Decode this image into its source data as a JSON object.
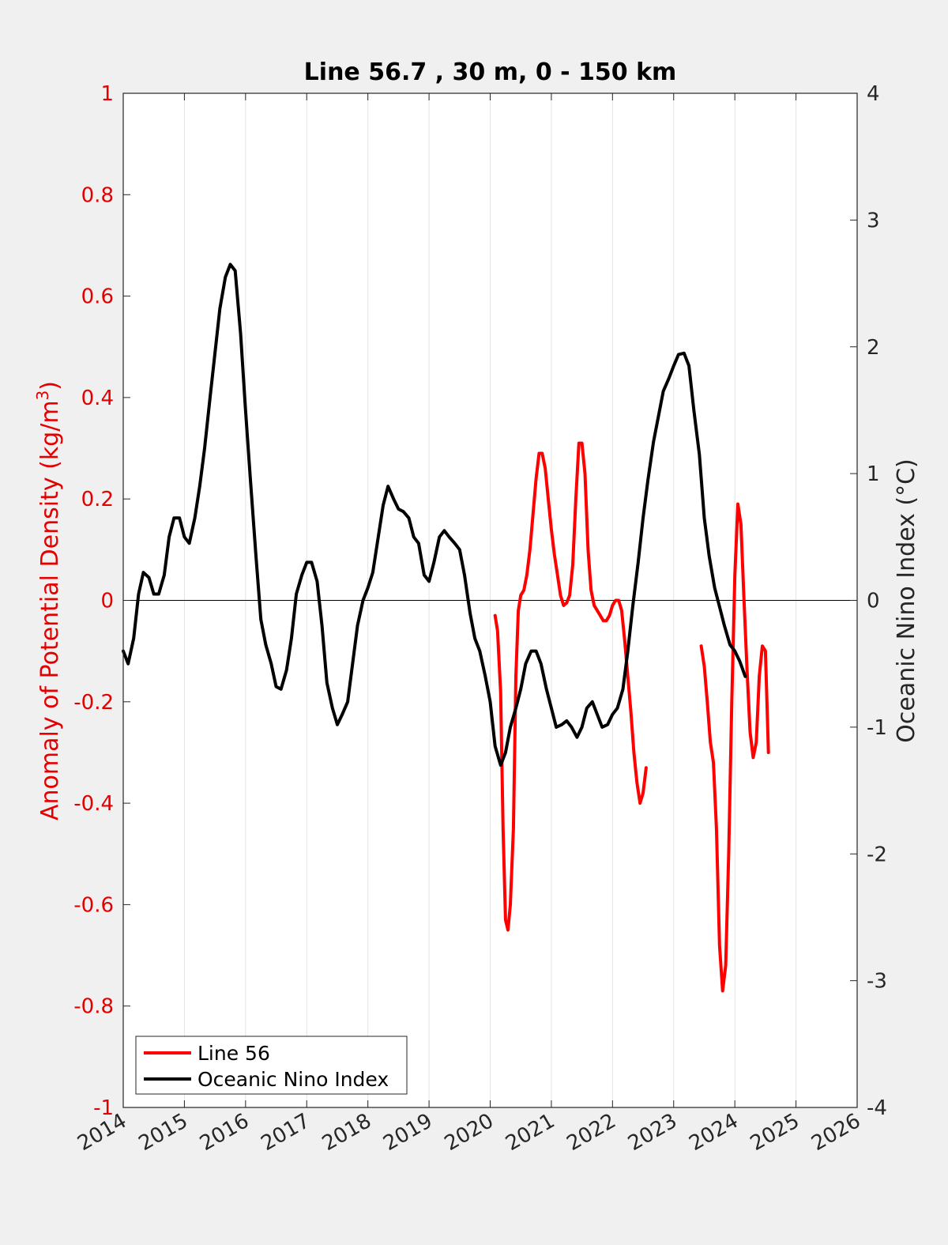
{
  "chart_data": {
    "type": "line",
    "title": "Line 56.7 , 30 m, 0 - 150 km",
    "xlim": [
      2014,
      2026
    ],
    "x_ticks": [
      "2014",
      "2015",
      "2016",
      "2017",
      "2018",
      "2019",
      "2020",
      "2021",
      "2022",
      "2023",
      "2024",
      "2025",
      "2026"
    ],
    "ylabel_left_prefix": "Anomaly of Potential Density (kg/m",
    "ylabel_left_superscript": "3",
    "ylabel_left_suffix": ")",
    "ylim_left": [
      -1,
      1
    ],
    "left_ticks": [
      "1",
      "0.8",
      "0.6",
      "0.4",
      "0.2",
      "0",
      "-0.2",
      "-0.4",
      "-0.6",
      "-0.8",
      "-1"
    ],
    "ylabel_right": "Oceanic Nino Index (°C)",
    "ylim_right": [
      -4,
      4
    ],
    "right_ticks": [
      "4",
      "3",
      "2",
      "1",
      "0",
      "-1",
      "-2",
      "-3",
      "-4"
    ],
    "grid": "x-only",
    "zero_line": true,
    "legend_position": "bottom-left",
    "colors": {
      "line56": "#ff0000",
      "oni": "#000000",
      "left_axis": "#e50000"
    },
    "series": [
      {
        "name": "Line 56",
        "axis": "left",
        "segments": [
          [
            [
              2020.08,
              -0.03
            ],
            [
              2020.12,
              -0.06
            ],
            [
              2020.17,
              -0.18
            ],
            [
              2020.21,
              -0.45
            ],
            [
              2020.25,
              -0.63
            ],
            [
              2020.29,
              -0.65
            ],
            [
              2020.33,
              -0.6
            ],
            [
              2020.38,
              -0.45
            ],
            [
              2020.42,
              -0.15
            ],
            [
              2020.46,
              -0.02
            ],
            [
              2020.5,
              0.01
            ],
            [
              2020.55,
              0.02
            ],
            [
              2020.6,
              0.05
            ],
            [
              2020.65,
              0.1
            ],
            [
              2020.7,
              0.17
            ],
            [
              2020.75,
              0.24
            ],
            [
              2020.8,
              0.29
            ],
            [
              2020.85,
              0.29
            ],
            [
              2020.9,
              0.26
            ],
            [
              2020.95,
              0.2
            ],
            [
              2021.0,
              0.14
            ],
            [
              2021.05,
              0.09
            ],
            [
              2021.1,
              0.05
            ],
            [
              2021.15,
              0.01
            ],
            [
              2021.2,
              -0.01
            ],
            [
              2021.25,
              -0.005
            ],
            [
              2021.3,
              0.01
            ],
            [
              2021.35,
              0.07
            ],
            [
              2021.4,
              0.2
            ],
            [
              2021.45,
              0.31
            ],
            [
              2021.5,
              0.31
            ],
            [
              2021.55,
              0.25
            ],
            [
              2021.6,
              0.1
            ],
            [
              2021.65,
              0.02
            ],
            [
              2021.7,
              -0.01
            ],
            [
              2021.75,
              -0.02
            ],
            [
              2021.8,
              -0.03
            ],
            [
              2021.85,
              -0.04
            ],
            [
              2021.9,
              -0.04
            ],
            [
              2021.95,
              -0.03
            ],
            [
              2022.0,
              -0.01
            ],
            [
              2022.05,
              0.0
            ],
            [
              2022.1,
              0.0
            ],
            [
              2022.15,
              -0.02
            ],
            [
              2022.2,
              -0.08
            ],
            [
              2022.25,
              -0.15
            ],
            [
              2022.3,
              -0.22
            ],
            [
              2022.35,
              -0.3
            ],
            [
              2022.4,
              -0.36
            ],
            [
              2022.45,
              -0.4
            ],
            [
              2022.5,
              -0.38
            ],
            [
              2022.55,
              -0.33
            ]
          ],
          [
            [
              2023.45,
              -0.09
            ],
            [
              2023.5,
              -0.13
            ],
            [
              2023.55,
              -0.2
            ],
            [
              2023.6,
              -0.28
            ],
            [
              2023.65,
              -0.32
            ],
            [
              2023.7,
              -0.45
            ],
            [
              2023.75,
              -0.68
            ],
            [
              2023.8,
              -0.77
            ],
            [
              2023.85,
              -0.72
            ],
            [
              2023.9,
              -0.5
            ],
            [
              2023.95,
              -0.2
            ],
            [
              2024.0,
              0.05
            ],
            [
              2024.05,
              0.19
            ],
            [
              2024.1,
              0.15
            ],
            [
              2024.15,
              0.0
            ],
            [
              2024.2,
              -0.14
            ],
            [
              2024.25,
              -0.26
            ],
            [
              2024.3,
              -0.31
            ],
            [
              2024.35,
              -0.28
            ],
            [
              2024.4,
              -0.15
            ],
            [
              2024.45,
              -0.09
            ],
            [
              2024.5,
              -0.1
            ],
            [
              2024.55,
              -0.3
            ]
          ]
        ]
      },
      {
        "name": "Oceanic Nino Index",
        "axis": "right",
        "values": [
          [
            2014.0,
            -0.4
          ],
          [
            2014.08,
            -0.5
          ],
          [
            2014.17,
            -0.3
          ],
          [
            2014.25,
            0.05
          ],
          [
            2014.33,
            0.22
          ],
          [
            2014.42,
            0.18
          ],
          [
            2014.5,
            0.05
          ],
          [
            2014.58,
            0.05
          ],
          [
            2014.67,
            0.2
          ],
          [
            2014.75,
            0.5
          ],
          [
            2014.83,
            0.65
          ],
          [
            2014.92,
            0.65
          ],
          [
            2015.0,
            0.5
          ],
          [
            2015.08,
            0.45
          ],
          [
            2015.17,
            0.65
          ],
          [
            2015.25,
            0.9
          ],
          [
            2015.33,
            1.2
          ],
          [
            2015.42,
            1.6
          ],
          [
            2015.5,
            1.95
          ],
          [
            2015.58,
            2.3
          ],
          [
            2015.67,
            2.55
          ],
          [
            2015.75,
            2.65
          ],
          [
            2015.83,
            2.6
          ],
          [
            2015.92,
            2.1
          ],
          [
            2016.0,
            1.5
          ],
          [
            2016.08,
            0.95
          ],
          [
            2016.17,
            0.35
          ],
          [
            2016.25,
            -0.15
          ],
          [
            2016.33,
            -0.35
          ],
          [
            2016.42,
            -0.5
          ],
          [
            2016.5,
            -0.68
          ],
          [
            2016.58,
            -0.7
          ],
          [
            2016.67,
            -0.55
          ],
          [
            2016.75,
            -0.3
          ],
          [
            2016.83,
            0.05
          ],
          [
            2016.92,
            0.2
          ],
          [
            2017.0,
            0.3
          ],
          [
            2017.08,
            0.3
          ],
          [
            2017.17,
            0.15
          ],
          [
            2017.25,
            -0.2
          ],
          [
            2017.33,
            -0.65
          ],
          [
            2017.42,
            -0.85
          ],
          [
            2017.5,
            -0.98
          ],
          [
            2017.58,
            -0.9
          ],
          [
            2017.67,
            -0.8
          ],
          [
            2017.75,
            -0.5
          ],
          [
            2017.83,
            -0.2
          ],
          [
            2017.92,
            0.0
          ],
          [
            2018.0,
            0.1
          ],
          [
            2018.08,
            0.22
          ],
          [
            2018.17,
            0.5
          ],
          [
            2018.25,
            0.75
          ],
          [
            2018.33,
            0.9
          ],
          [
            2018.42,
            0.8
          ],
          [
            2018.5,
            0.72
          ],
          [
            2018.58,
            0.7
          ],
          [
            2018.67,
            0.65
          ],
          [
            2018.75,
            0.5
          ],
          [
            2018.83,
            0.45
          ],
          [
            2018.92,
            0.2
          ],
          [
            2019.0,
            0.15
          ],
          [
            2019.08,
            0.3
          ],
          [
            2019.17,
            0.5
          ],
          [
            2019.25,
            0.55
          ],
          [
            2019.33,
            0.5
          ],
          [
            2019.42,
            0.45
          ],
          [
            2019.5,
            0.4
          ],
          [
            2019.58,
            0.2
          ],
          [
            2019.67,
            -0.1
          ],
          [
            2019.75,
            -0.3
          ],
          [
            2019.83,
            -0.4
          ],
          [
            2019.92,
            -0.6
          ],
          [
            2020.0,
            -0.8
          ],
          [
            2020.08,
            -1.15
          ],
          [
            2020.17,
            -1.3
          ],
          [
            2020.25,
            -1.2
          ],
          [
            2020.33,
            -1.0
          ],
          [
            2020.42,
            -0.85
          ],
          [
            2020.5,
            -0.7
          ],
          [
            2020.58,
            -0.5
          ],
          [
            2020.67,
            -0.4
          ],
          [
            2020.75,
            -0.4
          ],
          [
            2020.83,
            -0.5
          ],
          [
            2020.92,
            -0.7
          ],
          [
            2021.0,
            -0.85
          ],
          [
            2021.08,
            -1.0
          ],
          [
            2021.17,
            -0.98
          ],
          [
            2021.25,
            -0.95
          ],
          [
            2021.33,
            -1.0
          ],
          [
            2021.42,
            -1.08
          ],
          [
            2021.5,
            -1.0
          ],
          [
            2021.58,
            -0.85
          ],
          [
            2021.67,
            -0.8
          ],
          [
            2021.75,
            -0.9
          ],
          [
            2021.83,
            -1.0
          ],
          [
            2021.92,
            -0.98
          ],
          [
            2022.0,
            -0.9
          ],
          [
            2022.08,
            -0.85
          ],
          [
            2022.17,
            -0.7
          ],
          [
            2022.25,
            -0.4
          ],
          [
            2022.33,
            -0.05
          ],
          [
            2022.42,
            0.3
          ],
          [
            2022.5,
            0.65
          ],
          [
            2022.58,
            0.95
          ],
          [
            2022.67,
            1.25
          ],
          [
            2022.75,
            1.45
          ],
          [
            2022.83,
            1.65
          ],
          [
            2022.92,
            1.75
          ],
          [
            2023.0,
            1.85
          ],
          [
            2023.08,
            1.94
          ],
          [
            2023.17,
            1.95
          ],
          [
            2023.25,
            1.85
          ],
          [
            2023.33,
            1.5
          ],
          [
            2023.42,
            1.15
          ],
          [
            2023.5,
            0.65
          ],
          [
            2023.58,
            0.35
          ],
          [
            2023.67,
            0.1
          ],
          [
            2023.75,
            -0.05
          ],
          [
            2023.83,
            -0.2
          ],
          [
            2023.92,
            -0.35
          ],
          [
            2024.0,
            -0.4
          ],
          [
            2024.08,
            -0.48
          ],
          [
            2024.17,
            -0.6
          ]
        ]
      }
    ]
  }
}
